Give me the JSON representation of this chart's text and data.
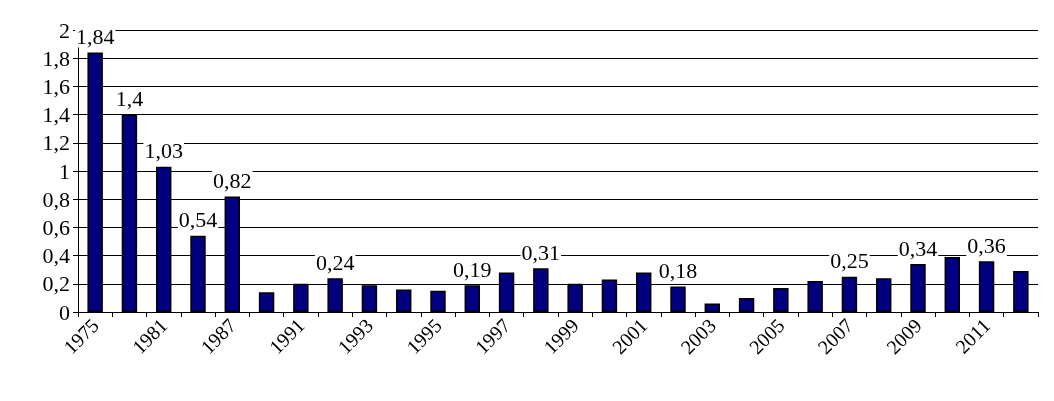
{
  "chart_data": {
    "type": "bar",
    "categories": [
      "1975",
      null,
      "1981",
      null,
      "1987",
      null,
      "1991",
      null,
      "1993",
      null,
      "1995",
      null,
      "1997",
      null,
      "1999",
      null,
      "2001",
      null,
      "2003",
      null,
      "2005",
      null,
      "2007",
      null,
      "2009",
      null,
      "2011",
      null
    ],
    "values": [
      1.84,
      1.4,
      1.03,
      0.54,
      0.82,
      0.14,
      0.2,
      0.24,
      0.19,
      0.16,
      0.15,
      0.19,
      0.28,
      0.31,
      0.2,
      0.23,
      0.28,
      0.18,
      0.06,
      0.1,
      0.17,
      0.22,
      0.25,
      0.24,
      0.34,
      0.39,
      0.36,
      0.29
    ],
    "value_labels": [
      "1,84",
      "1,4",
      "1,03",
      "0,54",
      "0,82",
      null,
      null,
      "0,24",
      null,
      null,
      null,
      "0,19",
      null,
      "0,31",
      null,
      null,
      null,
      "0,18",
      null,
      null,
      null,
      null,
      "0,25",
      null,
      "0,34",
      null,
      "0,36",
      null
    ],
    "color": "#000080",
    "ylim": [
      0,
      2
    ],
    "yticks": [
      0,
      {
        "value": 0.2,
        "label": "0,2"
      },
      {
        "value": 0.4,
        "label": "0,4"
      },
      {
        "value": 0.6,
        "label": "0,6"
      },
      {
        "value": 0.8,
        "label": "0,8"
      },
      1,
      {
        "value": 1.2,
        "label": "1,2"
      },
      {
        "value": 1.4,
        "label": "1,4"
      },
      {
        "value": 1.6,
        "label": "1,6"
      },
      {
        "value": 1.8,
        "label": "1,8"
      },
      2
    ],
    "grid": "y"
  }
}
